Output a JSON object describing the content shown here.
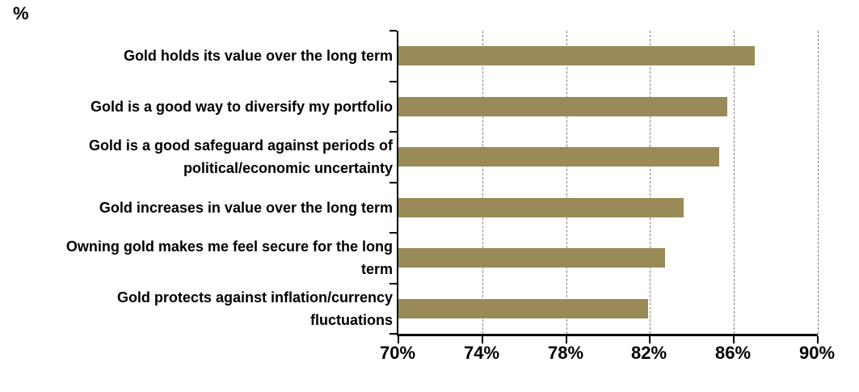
{
  "chart_data": {
    "type": "bar",
    "orientation": "horizontal",
    "unit_label": "%",
    "categories": [
      [
        "Gold holds its value over the long term"
      ],
      [
        "Gold is a good way to diversify my portfolio"
      ],
      [
        "Gold is a good safeguard against periods of",
        "political/economic uncertainty"
      ],
      [
        "Gold increases in value over the long term"
      ],
      [
        "Owning gold makes me feel secure  for the long",
        "term"
      ],
      [
        "Gold protects against inflation/currency",
        "fluctuations"
      ]
    ],
    "values": [
      87,
      85.7,
      85.3,
      83.6,
      82.7,
      81.9
    ],
    "xlim": [
      70,
      90
    ],
    "xticks": [
      70,
      74,
      78,
      82,
      86,
      90
    ],
    "xtick_labels": [
      "70%",
      "74%",
      "78%",
      "82%",
      "86%",
      "90%"
    ],
    "bar_color": "#998a58",
    "gridline_color": "#7f7f7f",
    "axis_color": "#000000",
    "grid": "vertical-dashed",
    "legend": "none",
    "title": ""
  }
}
